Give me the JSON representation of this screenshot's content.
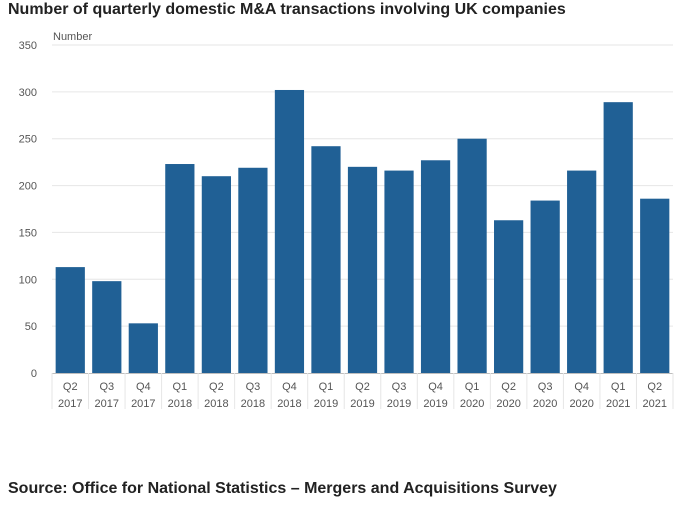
{
  "chart_data": {
    "type": "bar",
    "title": "Number of quarterly domestic M&A transactions involving UK companies",
    "ylabel": "Number",
    "xlabel": "",
    "ylim": [
      0,
      350
    ],
    "yticks": [
      0,
      50,
      100,
      150,
      200,
      250,
      300,
      350
    ],
    "grid": true,
    "legend": "none",
    "categories": [
      [
        "Q2",
        "2017"
      ],
      [
        "Q3",
        "2017"
      ],
      [
        "Q4",
        "2017"
      ],
      [
        "Q1",
        "2018"
      ],
      [
        "Q2",
        "2018"
      ],
      [
        "Q3",
        "2018"
      ],
      [
        "Q4",
        "2018"
      ],
      [
        "Q1",
        "2019"
      ],
      [
        "Q2",
        "2019"
      ],
      [
        "Q3",
        "2019"
      ],
      [
        "Q4",
        "2019"
      ],
      [
        "Q1",
        "2020"
      ],
      [
        "Q2",
        "2020"
      ],
      [
        "Q3",
        "2020"
      ],
      [
        "Q4",
        "2020"
      ],
      [
        "Q1",
        "2021"
      ],
      [
        "Q2",
        "2021"
      ]
    ],
    "values": [
      113,
      98,
      53,
      223,
      210,
      219,
      302,
      242,
      220,
      216,
      227,
      250,
      163,
      184,
      216,
      289,
      186
    ],
    "colors": {
      "bar": "#206095",
      "grid": "#e6e6e6",
      "axis": "#bebebe"
    }
  },
  "source": "Source: Office for National Statistics – Mergers and Acquisitions Survey"
}
